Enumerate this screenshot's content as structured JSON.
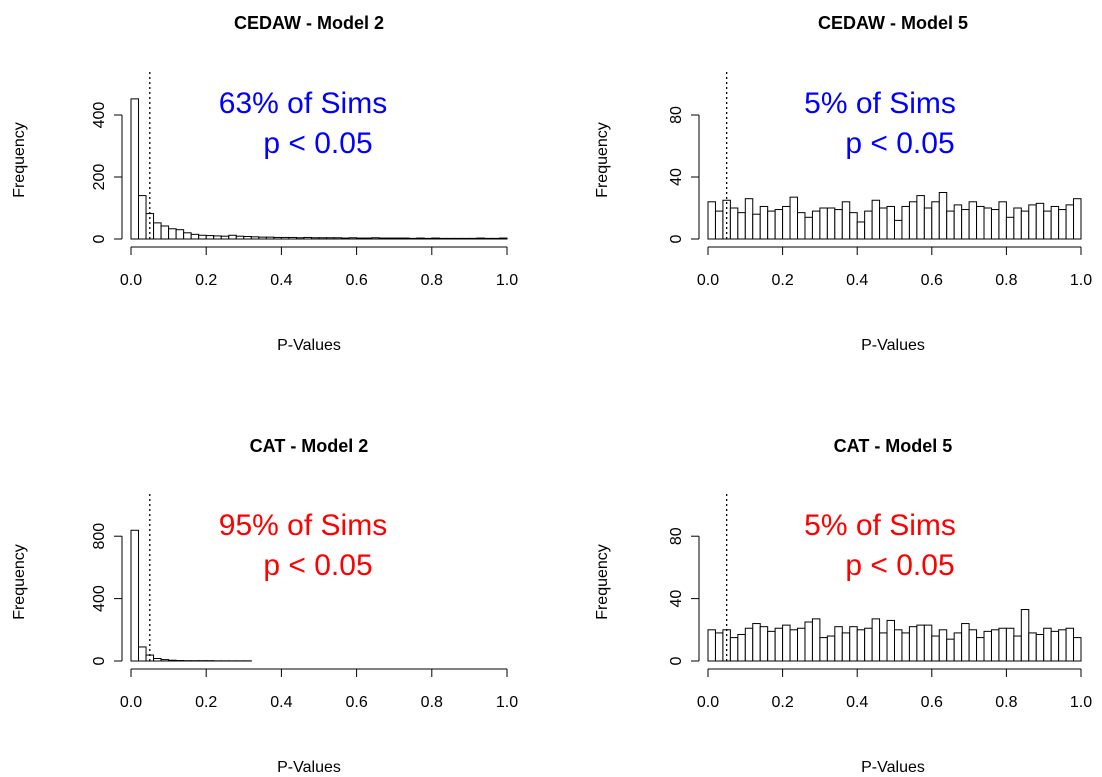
{
  "chart_data": [
    {
      "type": "bar",
      "title": "CEDAW - Model 2",
      "xlabel": "P-Values",
      "ylabel": "Frequency",
      "xlim": [
        0,
        1
      ],
      "ylim": [
        0,
        500
      ],
      "x_ticks": [
        "0.0",
        "0.2",
        "0.4",
        "0.6",
        "0.8",
        "1.0"
      ],
      "y_ticks": [
        "0",
        "200",
        "400"
      ],
      "y_tick_values": [
        0,
        200,
        400
      ],
      "bin_width": 0.02,
      "values": [
        452,
        140,
        82,
        52,
        42,
        33,
        30,
        20,
        15,
        12,
        11,
        10,
        9,
        12,
        9,
        8,
        7,
        6,
        6,
        5,
        5,
        5,
        4,
        5,
        4,
        4,
        4,
        4,
        3,
        4,
        3,
        3,
        4,
        3,
        3,
        3,
        3,
        2,
        3,
        2,
        3,
        2,
        2,
        2,
        2,
        2,
        3,
        2,
        2,
        3
      ],
      "reference_line_x": 0.05,
      "annotation": [
        "63% of Sims",
        "p < 0.05"
      ],
      "annotation_color": "#0000ff"
    },
    {
      "type": "bar",
      "title": "CEDAW - Model 5",
      "xlabel": "P-Values",
      "ylabel": "Frequency",
      "xlim": [
        0,
        1
      ],
      "ylim": [
        0,
        100
      ],
      "x_ticks": [
        "0.0",
        "0.2",
        "0.4",
        "0.6",
        "0.8",
        "1.0"
      ],
      "y_ticks": [
        "0",
        "40",
        "80"
      ],
      "y_tick_values": [
        0,
        40,
        80
      ],
      "bin_width": 0.02,
      "values": [
        24,
        18,
        25,
        20,
        17,
        26,
        16,
        21,
        18,
        19,
        21,
        27,
        17,
        14,
        18,
        20,
        20,
        19,
        24,
        17,
        11,
        18,
        25,
        20,
        21,
        12,
        21,
        24,
        28,
        20,
        24,
        30,
        18,
        22,
        19,
        24,
        21,
        20,
        19,
        24,
        14,
        20,
        18,
        22,
        23,
        18,
        21,
        19,
        22,
        26
      ],
      "reference_line_x": 0.05,
      "annotation": [
        "5% of Sims",
        "p < 0.05"
      ],
      "annotation_color": "#0000ff"
    },
    {
      "type": "bar",
      "title": "CAT - Model 2",
      "xlabel": "P-Values",
      "ylabel": "Frequency",
      "xlim": [
        0,
        1
      ],
      "ylim": [
        0,
        1000
      ],
      "x_ticks": [
        "0.0",
        "0.2",
        "0.4",
        "0.6",
        "0.8",
        "1.0"
      ],
      "y_ticks": [
        "0",
        "400",
        "800"
      ],
      "y_tick_values": [
        0,
        400,
        800
      ],
      "bin_width": 0.02,
      "values": [
        838,
        90,
        38,
        16,
        9,
        5,
        3,
        2,
        2,
        2,
        2,
        1,
        1,
        1,
        1,
        1
      ],
      "reference_line_x": 0.05,
      "annotation": [
        "95% of Sims",
        "p < 0.05"
      ],
      "annotation_color": "#ff0000"
    },
    {
      "type": "bar",
      "title": "CAT - Model 5",
      "xlabel": "P-Values",
      "ylabel": "Frequency",
      "xlim": [
        0,
        1
      ],
      "ylim": [
        0,
        100
      ],
      "x_ticks": [
        "0.0",
        "0.2",
        "0.4",
        "0.6",
        "0.8",
        "1.0"
      ],
      "y_ticks": [
        "0",
        "40",
        "80"
      ],
      "y_tick_values": [
        0,
        40,
        80
      ],
      "bin_width": 0.02,
      "values": [
        20,
        18,
        20,
        15,
        17,
        21,
        24,
        22,
        19,
        21,
        23,
        20,
        21,
        25,
        27,
        15,
        16,
        22,
        18,
        22,
        20,
        21,
        27,
        18,
        26,
        20,
        18,
        22,
        23,
        23,
        16,
        20,
        14,
        18,
        24,
        20,
        15,
        19,
        20,
        21,
        21,
        16,
        33,
        18,
        17,
        21,
        19,
        20,
        21,
        15
      ],
      "reference_line_x": 0.05,
      "annotation": [
        "5% of Sims",
        "p < 0.05"
      ],
      "annotation_color": "#ff0000"
    }
  ]
}
